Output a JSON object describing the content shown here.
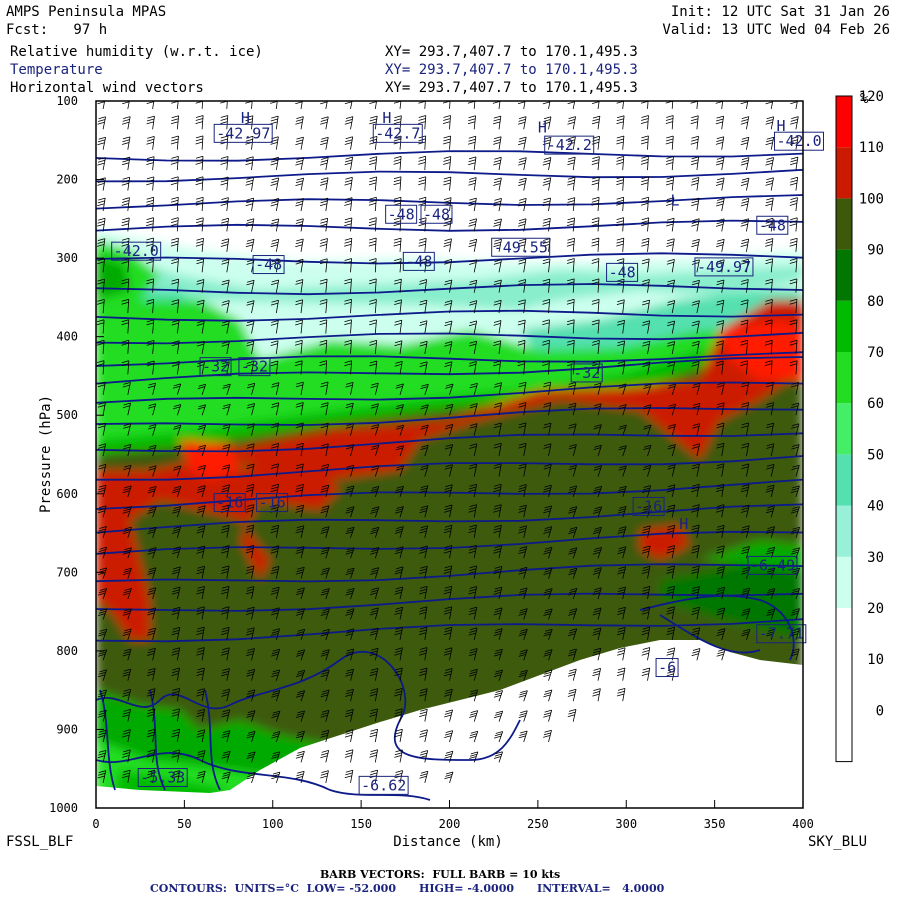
{
  "header": {
    "model": "AMPS Peninsula MPAS",
    "fcst": "Fcst:   97 h",
    "init": "Init: 12 UTC Sat 31 Jan 26",
    "valid": "Valid: 13 UTC Wed 04 Feb 26",
    "fields": [
      {
        "label": "Relative humidity (w.r.t. ice)",
        "xy": "XY= 293.7,407.7 to 170.1,495.3"
      },
      {
        "label": "Temperature",
        "xy": "XY= 293.7,407.7 to 170.1,495.3"
      },
      {
        "label": "Horizontal wind vectors",
        "xy": "XY= 293.7,407.7 to 170.1,495.3"
      }
    ]
  },
  "footer": {
    "barb": "BARB VECTORS:  FULL BARB = 10 kts",
    "contours": "CONTOURS:  UNITS=°C  LOW= -52.000      HIGH= -4.0000      INTERVAL=   4.0000"
  },
  "chart_data": {
    "type": "heatmap",
    "xlabel": "Distance (km)",
    "ylabel": "Pressure (hPa)",
    "xlim": [
      0,
      400
    ],
    "ylim": [
      1000,
      100
    ],
    "x_ticks": [
      0,
      50,
      100,
      150,
      200,
      250,
      300,
      350,
      400
    ],
    "y_ticks": [
      100,
      200,
      300,
      400,
      500,
      600,
      700,
      800,
      900,
      1000
    ],
    "left_endpoint": "FSSL_BLF",
    "right_endpoint": "SKY_BLU",
    "colorbar": {
      "unit": "%",
      "levels": [
        0,
        10,
        20,
        30,
        40,
        50,
        60,
        70,
        80,
        90,
        100,
        110,
        120
      ],
      "colors": [
        "#ffffff",
        "#ffffff",
        "#ffffff",
        "#ccffee",
        "#99f0d8",
        "#55e0b0",
        "#44ee66",
        "#22dd22",
        "#00bb00",
        "#007700",
        "#3d5a0a",
        "#cc1a00",
        "#ff0000"
      ]
    },
    "terrain_surface": [
      [
        0,
        980
      ],
      [
        100,
        985
      ],
      [
        200,
        985
      ],
      [
        210,
        980
      ],
      [
        250,
        935
      ],
      [
        300,
        880
      ],
      [
        350,
        825
      ],
      [
        380,
        810
      ],
      [
        400,
        830
      ]
    ],
    "temperature_contour_labels": [
      {
        "x": 68,
        "p": 145,
        "text": "-42.97"
      },
      {
        "x": 158,
        "p": 145,
        "text": "-42.7"
      },
      {
        "x": 255,
        "p": 160,
        "text": "-42.2"
      },
      {
        "x": 385,
        "p": 155,
        "text": "-42.0"
      },
      {
        "x": 10,
        "p": 295,
        "text": "-42.0"
      },
      {
        "x": 165,
        "p": 248,
        "text": "-48"
      },
      {
        "x": 185,
        "p": 248,
        "text": "-48"
      },
      {
        "x": 225,
        "p": 290,
        "text": "-49.55"
      },
      {
        "x": 375,
        "p": 262,
        "text": "-48"
      },
      {
        "x": 90,
        "p": 312,
        "text": "-48"
      },
      {
        "x": 175,
        "p": 308,
        "text": "-48"
      },
      {
        "x": 290,
        "p": 322,
        "text": "-48"
      },
      {
        "x": 340,
        "p": 315,
        "text": "-49.97"
      },
      {
        "x": 60,
        "p": 442,
        "text": "-32"
      },
      {
        "x": 82,
        "p": 442,
        "text": "-32"
      },
      {
        "x": 270,
        "p": 450,
        "text": "-32"
      },
      {
        "x": 68,
        "p": 615,
        "text": "-16"
      },
      {
        "x": 92,
        "p": 615,
        "text": "-16"
      },
      {
        "x": 305,
        "p": 620,
        "text": "-16"
      },
      {
        "x": 370,
        "p": 695,
        "text": "-6.49"
      },
      {
        "x": 375,
        "p": 782,
        "text": "-7.71"
      },
      {
        "x": 318,
        "p": 825,
        "text": "-6"
      },
      {
        "x": 25,
        "p": 965,
        "text": "-5.33"
      },
      {
        "x": 150,
        "p": 975,
        "text": "-6.62"
      }
    ],
    "contour_high_marks": [
      {
        "x": 82,
        "p": 128,
        "text": "H"
      },
      {
        "x": 162,
        "p": 128,
        "text": "H"
      },
      {
        "x": 250,
        "p": 140,
        "text": "H"
      },
      {
        "x": 385,
        "p": 138,
        "text": "H"
      },
      {
        "x": 330,
        "p": 645,
        "text": "H"
      },
      {
        "x": 325,
        "p": 233,
        "text": "L"
      }
    ]
  }
}
